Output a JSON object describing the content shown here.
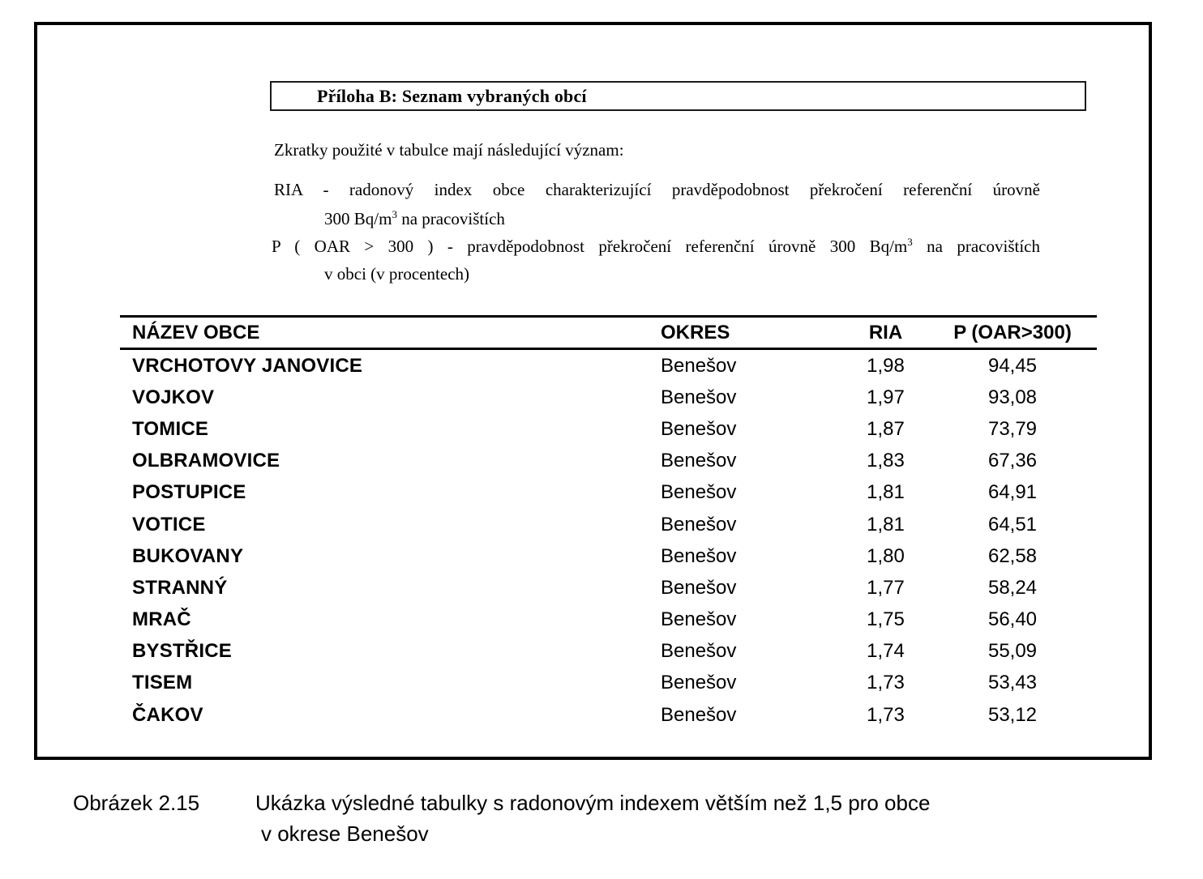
{
  "document": {
    "appendix_title": "Příloha B: Seznam vybraných obcí",
    "intro": "Zkratky použité v tabulce mají následující význam:",
    "ria": {
      "line1": "RIA - radonový index obce charakterizující pravděpodobnost překročení referenční úrovně",
      "line2_pre": "300 Bq/m",
      "line2_sup": "3",
      "line2_post": " na pracovištích"
    },
    "p_def": {
      "line1_pre": "P ( OAR > 300 ) - pravděpodobnost překročení referenční úrovně 300 Bq/m",
      "line1_sup": "3",
      "line1_post": " na pracovištích",
      "line2": "v obci (v procentech)"
    }
  },
  "table": {
    "headers": [
      "NÁZEV OBCE",
      "OKRES",
      "RIA",
      "P (OAR>300)"
    ],
    "rows": [
      [
        "VRCHOTOVY JANOVICE",
        "Benešov",
        "1,98",
        "94,45"
      ],
      [
        "VOJKOV",
        "Benešov",
        "1,97",
        "93,08"
      ],
      [
        "TOMICE",
        "Benešov",
        "1,87",
        "73,79"
      ],
      [
        "OLBRAMOVICE",
        "Benešov",
        "1,83",
        "67,36"
      ],
      [
        "POSTUPICE",
        "Benešov",
        "1,81",
        "64,91"
      ],
      [
        "VOTICE",
        "Benešov",
        "1,81",
        "64,51"
      ],
      [
        "BUKOVANY",
        "Benešov",
        "1,80",
        "62,58"
      ],
      [
        "STRANNÝ",
        "Benešov",
        "1,77",
        "58,24"
      ],
      [
        "MRAČ",
        "Benešov",
        "1,75",
        "56,40"
      ],
      [
        "BYSTŘICE",
        "Benešov",
        "1,74",
        "55,09"
      ],
      [
        "TISEM",
        "Benešov",
        "1,73",
        "53,43"
      ],
      [
        "ČAKOV",
        "Benešov",
        "1,73",
        "53,12"
      ]
    ]
  },
  "caption": {
    "label": "Obrázek 2.15",
    "line1": "Ukázka výsledné tabulky s radonovým indexem větším než 1,5 pro obce",
    "line2": "v okrese Benešov"
  }
}
